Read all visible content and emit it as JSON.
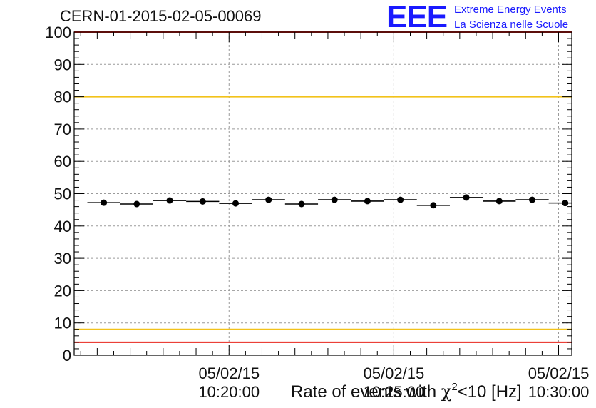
{
  "header": {
    "run_id": "CERN-01-2015-02-05-00069"
  },
  "logo": {
    "mark": "EEE",
    "line1": "Extreme Energy Events",
    "line2": "La Scienza nelle Scuole",
    "color": "#1a1aff"
  },
  "chart_data": {
    "type": "scatter",
    "title": "",
    "xlabel_parts": {
      "before": "Rate of events with ",
      "symbol": "χ",
      "sup": "2",
      "after": "<10 [Hz]"
    },
    "ylabel": "",
    "ylim": [
      0,
      100
    ],
    "yticks": [
      0,
      10,
      20,
      30,
      40,
      50,
      60,
      70,
      80,
      90,
      100
    ],
    "xtick_labels": [
      {
        "date": "05/02/15",
        "time": "10:20:00"
      },
      {
        "date": "05/02/15",
        "time": "10:25:00"
      },
      {
        "date": "05/02/15",
        "time": "10:30:00"
      }
    ],
    "grid": true,
    "series": [
      {
        "x": [
          "10:16:12",
          "10:17:12",
          "10:18:12",
          "10:19:12",
          "10:20:12",
          "10:21:12",
          "10:22:12",
          "10:23:12",
          "10:24:12",
          "10:25:12",
          "10:26:12",
          "10:27:12",
          "10:28:12",
          "10:29:12",
          "10:30:12"
        ],
        "values": [
          47.2,
          46.8,
          47.9,
          47.6,
          47.0,
          48.1,
          46.8,
          48.1,
          47.7,
          48.1,
          46.4,
          48.8,
          47.7,
          48.1,
          47.1
        ]
      }
    ],
    "reference_lines": [
      {
        "value": 100,
        "color": "#e8241c"
      },
      {
        "value": 80,
        "color": "#f2c21a"
      },
      {
        "value": 8,
        "color": "#f2c21a"
      },
      {
        "value": 4,
        "color": "#e8241c"
      }
    ]
  }
}
